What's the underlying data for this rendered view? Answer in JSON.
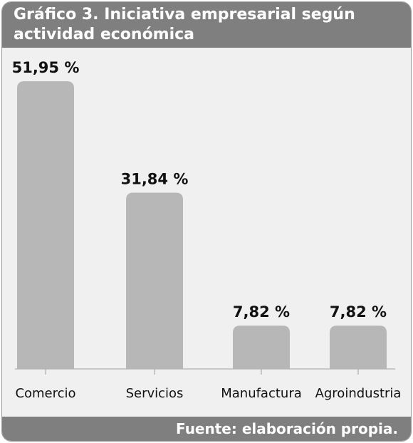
{
  "title": "Gráfico 3. Iniciativa empresarial según actividad económica",
  "source": "Fuente: elaboración propia.",
  "colors": {
    "panel_background": "#f0f0f0",
    "header_footer": "#7f7f7f",
    "bar": "#b7b7b7",
    "axis": "#a0a0a0"
  },
  "chart_data": {
    "type": "bar",
    "categories": [
      "Comercio",
      "Servicios",
      "Manufactura",
      "Agroindustria"
    ],
    "values": [
      51.95,
      31.84,
      7.82,
      7.82
    ],
    "value_labels": [
      "51,95 %",
      "31,84 %",
      "7,82 %",
      "7,82 %"
    ],
    "xlabel": "",
    "ylabel": "",
    "ylim": [
      0,
      55
    ],
    "grid": false,
    "legend": "none"
  }
}
